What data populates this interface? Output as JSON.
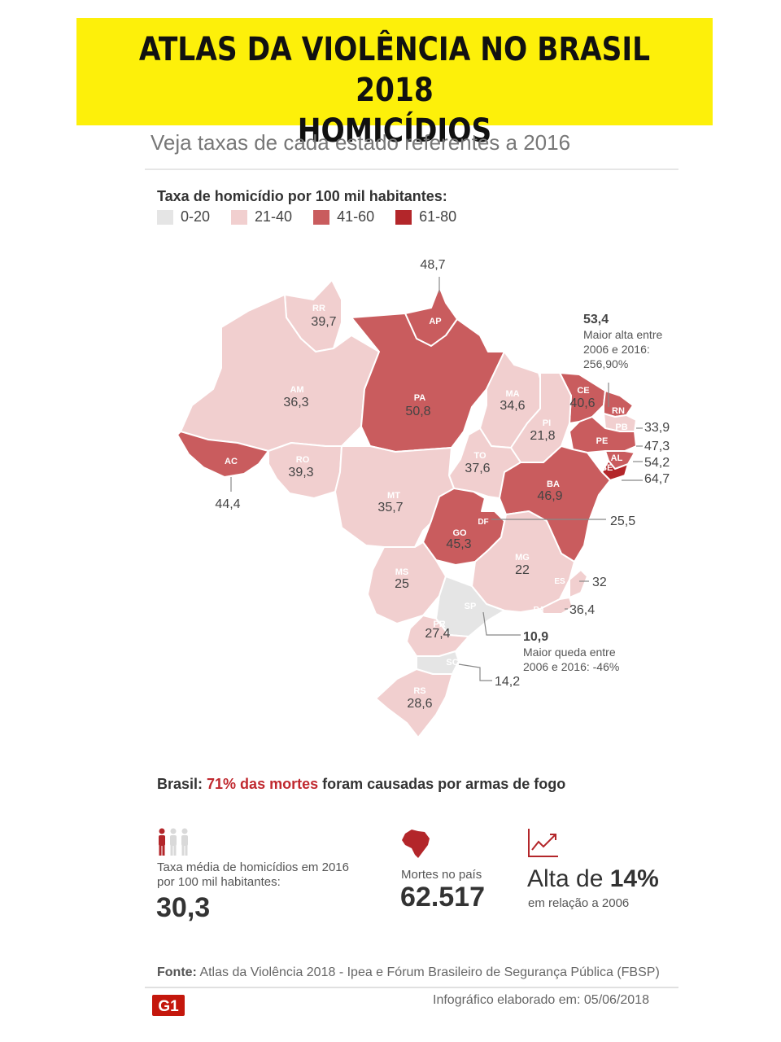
{
  "banner": {
    "line1": "ATLAS DA VIOLÊNCIA NO BRASIL 2018",
    "line2": "HOMICÍDIOS"
  },
  "subtitle": "Veja taxas de cada estado referentes a 2016",
  "legend": {
    "title": "Taxa de homicídio por 100 mil habitantes:",
    "items": [
      {
        "label": "0-20",
        "color": "#e5e5e5"
      },
      {
        "label": "21-40",
        "color": "#f1cfcf"
      },
      {
        "label": "41-60",
        "color": "#c95c5e"
      },
      {
        "label": "61-80",
        "color": "#b3262a"
      }
    ]
  },
  "states": [
    {
      "abbr": "RR",
      "rate": "39,7"
    },
    {
      "abbr": "AP",
      "rate": "48,7"
    },
    {
      "abbr": "AM",
      "rate": "36,3"
    },
    {
      "abbr": "PA",
      "rate": "50,8"
    },
    {
      "abbr": "MA",
      "rate": "34,6"
    },
    {
      "abbr": "CE",
      "rate": "40,6"
    },
    {
      "abbr": "RN",
      "rate": "53,4"
    },
    {
      "abbr": "PB",
      "rate": "33,9"
    },
    {
      "abbr": "PE",
      "rate": "47,3"
    },
    {
      "abbr": "AL",
      "rate": "54,2"
    },
    {
      "abbr": "SE",
      "rate": "64,7"
    },
    {
      "abbr": "PI",
      "rate": "21,8"
    },
    {
      "abbr": "AC",
      "rate": "44,4"
    },
    {
      "abbr": "RO",
      "rate": "39,3"
    },
    {
      "abbr": "TO",
      "rate": "37,6"
    },
    {
      "abbr": "BA",
      "rate": "46,9"
    },
    {
      "abbr": "MT",
      "rate": "35,7"
    },
    {
      "abbr": "DF",
      "rate": "25,5"
    },
    {
      "abbr": "GO",
      "rate": "45,3"
    },
    {
      "abbr": "MG",
      "rate": "22"
    },
    {
      "abbr": "MS",
      "rate": "25"
    },
    {
      "abbr": "ES",
      "rate": "32"
    },
    {
      "abbr": "RJ",
      "rate": "36,4"
    },
    {
      "abbr": "SP",
      "rate": "10,9"
    },
    {
      "abbr": "PR",
      "rate": "27,4"
    },
    {
      "abbr": "SC",
      "rate": "14,2"
    },
    {
      "abbr": "RS",
      "rate": "28,6"
    }
  ],
  "notes": {
    "rn": [
      "Maior alta entre",
      "2006 e 2016:",
      "256,90%"
    ],
    "sp": [
      "Maior queda entre",
      "2006 e 2016: -46%"
    ]
  },
  "guns": {
    "prefix": "Brasil: ",
    "highlight": "71% das mortes",
    "suffix": " foram causadas por armas de fogo"
  },
  "stats": {
    "avg_label_1": "Taxa média de homicídios em 2016",
    "avg_label_2": "por 100 mil habitantes:",
    "avg_value": "30,3",
    "deaths_label": "Mortes no país",
    "deaths_value": "62.517",
    "rise_prefix": "Alta de ",
    "rise_value": "14%",
    "rise_label": "em relação a 2006"
  },
  "footer": {
    "source_label": "Fonte:",
    "source_text": " Atlas da Violência 2018 - Ipea e Fórum Brasileiro de Segurança Pública (FBSP)",
    "logo": "G1",
    "credit": "Infográfico elaborado em: 05/06/2018"
  }
}
